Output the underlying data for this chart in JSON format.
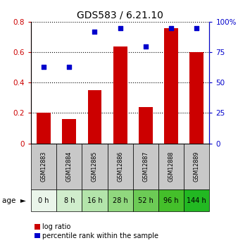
{
  "title": "GDS583 / 6.21.10",
  "gsm_labels": [
    "GSM12883",
    "GSM12884",
    "GSM12885",
    "GSM12886",
    "GSM12887",
    "GSM12888",
    "GSM12889"
  ],
  "age_labels": [
    "0 h",
    "8 h",
    "16 h",
    "28 h",
    "52 h",
    "96 h",
    "144 h"
  ],
  "log_ratio": [
    0.2,
    0.16,
    0.35,
    0.64,
    0.24,
    0.76,
    0.6
  ],
  "percentile_rank": [
    63,
    63,
    92,
    95,
    80,
    95,
    95
  ],
  "bar_color": "#cc0000",
  "dot_color": "#0000cc",
  "ylim_left": [
    0,
    0.8
  ],
  "ylim_right": [
    0,
    100
  ],
  "yticks_left": [
    0,
    0.2,
    0.4,
    0.6,
    0.8
  ],
  "yticks_right": [
    0,
    25,
    50,
    75,
    100
  ],
  "ytick_labels_left": [
    "0",
    "0.2",
    "0.4",
    "0.6",
    "0.8"
  ],
  "ytick_labels_right": [
    "0",
    "25",
    "50",
    "75",
    "100%"
  ],
  "age_colors": [
    "#eaf5ea",
    "#d0edcc",
    "#b3e4aa",
    "#90d87e",
    "#6ccb55",
    "#44bf2a",
    "#22b822"
  ],
  "gsm_bg_color": "#c8c8c8",
  "bar_width": 0.55,
  "legend_labels": [
    "log ratio",
    "percentile rank within the sample"
  ]
}
